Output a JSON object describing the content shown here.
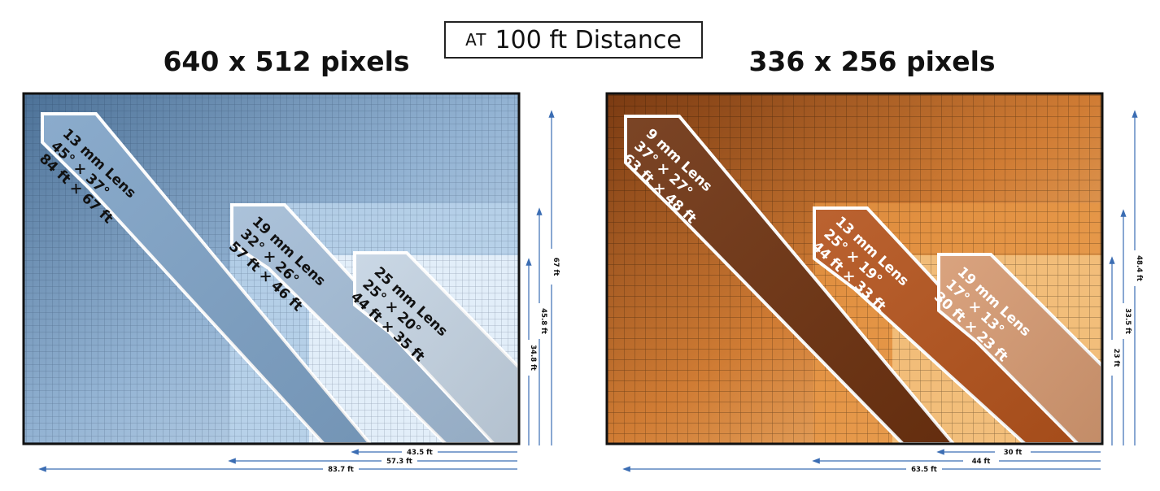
{
  "header": {
    "distance_prefix": "AT",
    "distance_text": "100 ft Distance"
  },
  "panels": [
    {
      "id": "left",
      "title": "640 x 512 pixels",
      "colors": {
        "dark": "#5d83a8",
        "mid": "#8fb0d2",
        "light": "#cfe1f2",
        "lightest": "#eef6fd"
      },
      "bands": [
        {
          "lines": [
            "13 mm Lens",
            "45° × 37°",
            "84 ft × 67 ft"
          ],
          "fill": "#7fa3c7",
          "text_color": "#111111"
        },
        {
          "lines": [
            "19 mm Lens",
            "32° × 26°",
            "57 ft × 46 ft"
          ],
          "fill": "#a3bcd6",
          "text_color": "#111111"
        },
        {
          "lines": [
            "25 mm Lens",
            "25° × 20°",
            "44 ft × 35 ft"
          ],
          "fill": "#c5d4e3",
          "text_color": "#111111"
        }
      ],
      "vertical_dims": [
        "67 ft",
        "45.8 ft",
        "34.8 ft"
      ],
      "horizontal_dims": [
        "43.5 ft",
        "57.3 ft",
        "83.7 ft"
      ]
    },
    {
      "id": "right",
      "title": "336 x 256 pixels",
      "colors": {
        "dark": "#7a3a12",
        "mid": "#c7702c",
        "light": "#eea35a",
        "lightest": "#f7c98c"
      },
      "bands": [
        {
          "lines": [
            "9 mm Lens",
            "37° × 27°",
            "63 ft × 48 ft"
          ],
          "fill": "#6e3210",
          "text_color": "#ffffff"
        },
        {
          "lines": [
            "13 mm Lens",
            "25° × 19°",
            "44 ft × 33 ft"
          ],
          "fill": "#b4531c",
          "text_color": "#ffffff"
        },
        {
          "lines": [
            "19 mm Lens",
            "17° × 13°",
            "30 ft × 23 ft"
          ],
          "fill": "#d69a72",
          "text_color": "#ffffff"
        }
      ],
      "vertical_dims": [
        "48.4 ft",
        "33.5 ft",
        "23 ft"
      ],
      "horizontal_dims": [
        "30 ft",
        "44 ft",
        "63.5 ft"
      ]
    }
  ],
  "colors": {
    "arrow": "#3b6db3",
    "frame": "#111111"
  }
}
